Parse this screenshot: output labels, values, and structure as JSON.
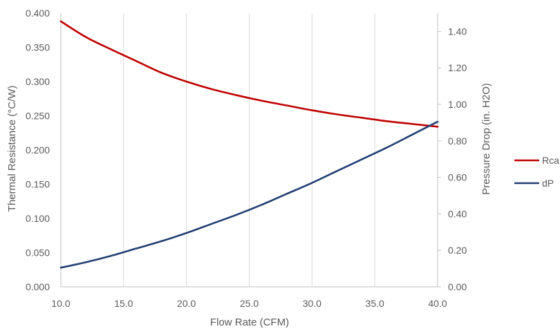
{
  "chart_data": {
    "type": "line",
    "title": "",
    "xlabel": "Flow Rate (CFM)",
    "ylabel": "Thermal Resistance (°C/W)",
    "y2label": "Pressure Drop (in. H2O)",
    "xlim": [
      10,
      40
    ],
    "ylim": [
      0,
      0.4
    ],
    "y2lim": [
      0,
      1.5
    ],
    "x_ticks": [
      "10.0",
      "15.0",
      "20.0",
      "25.0",
      "30.0",
      "35.0",
      "40.0"
    ],
    "y_ticks": [
      "0.000",
      "0.050",
      "0.100",
      "0.150",
      "0.200",
      "0.250",
      "0.300",
      "0.350",
      "0.400"
    ],
    "y2_ticks": [
      "0.00",
      "0.20",
      "0.40",
      "0.60",
      "0.80",
      "1.00",
      "1.20",
      "1.40"
    ],
    "grid": "vertical",
    "legend": "right",
    "series": [
      {
        "name": "Rca",
        "axis": "left",
        "color": "#c00000",
        "x": [
          10,
          12,
          14,
          16,
          18,
          20,
          22,
          24,
          26,
          28,
          30,
          32,
          34,
          36,
          38,
          40
        ],
        "values": [
          0.388,
          0.365,
          0.347,
          0.33,
          0.313,
          0.3,
          0.289,
          0.28,
          0.272,
          0.265,
          0.258,
          0.252,
          0.247,
          0.242,
          0.238,
          0.234
        ]
      },
      {
        "name": "dP",
        "axis": "right",
        "color": "#1f3e73",
        "x": [
          10,
          12,
          14,
          16,
          18,
          20,
          22,
          24,
          26,
          28,
          30,
          32,
          34,
          36,
          38,
          40
        ],
        "values": [
          0.105,
          0.135,
          0.17,
          0.21,
          0.25,
          0.295,
          0.345,
          0.395,
          0.45,
          0.51,
          0.57,
          0.635,
          0.7,
          0.765,
          0.835,
          0.905
        ]
      }
    ]
  }
}
